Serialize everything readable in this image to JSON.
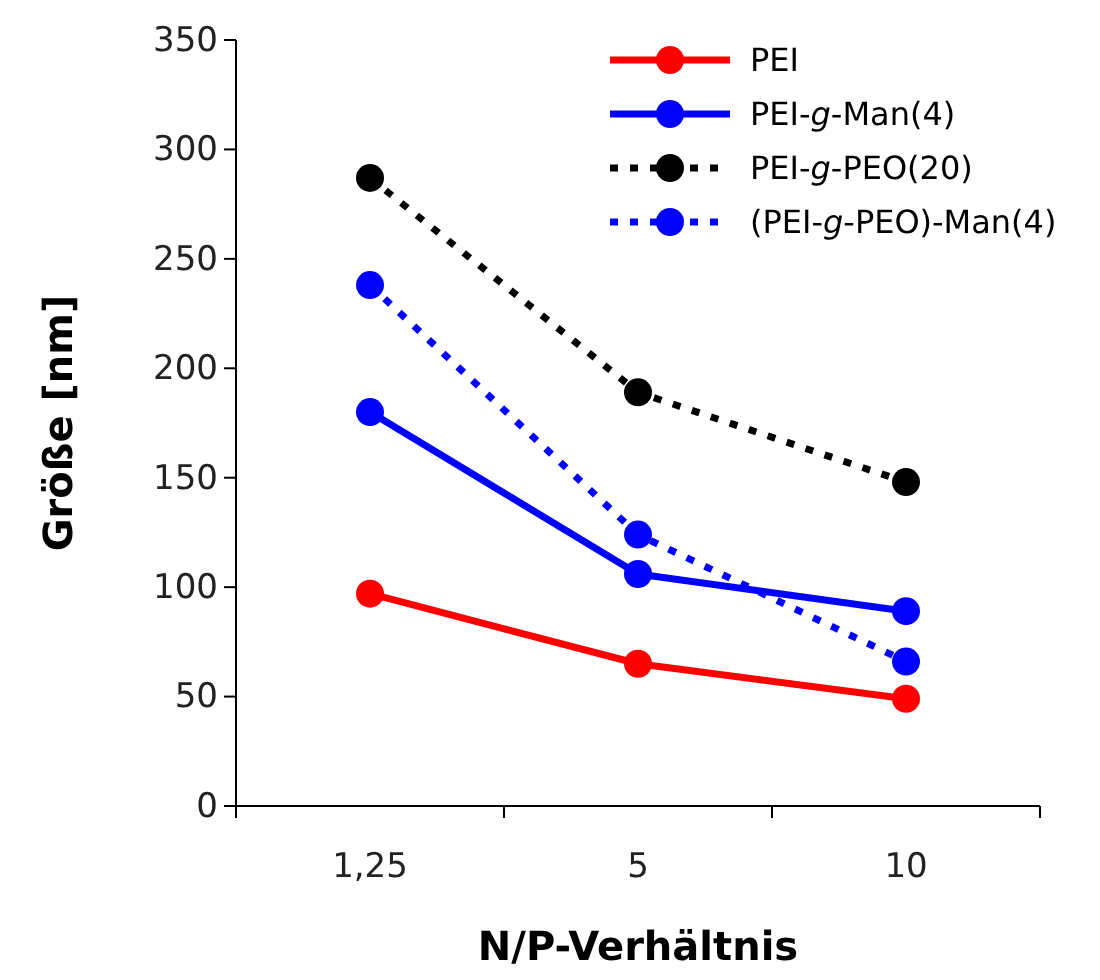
{
  "chart_data": {
    "type": "line",
    "xlabel": "N/P-Verhältnis",
    "ylabel": "Größe [nm]",
    "categories": [
      "1,25",
      "5",
      "10"
    ],
    "series": [
      {
        "name": "PEI",
        "color": "#ff0000",
        "values": [
          97,
          65,
          49
        ],
        "line_style": "solid"
      },
      {
        "name": "PEI-g-Man(4)",
        "color": "#0000ff",
        "values": [
          180,
          106,
          89
        ],
        "line_style": "solid"
      },
      {
        "name": "PEI-g-PEO(20)",
        "color": "#000000",
        "values": [
          287,
          189,
          148
        ],
        "line_style": "dotted"
      },
      {
        "name": "(PEI-g-PEO)-Man(4)",
        "color": "#0000ff",
        "values": [
          238,
          124,
          66
        ],
        "line_style": "dotted"
      }
    ],
    "ylim": [
      0,
      350
    ],
    "yticks": [
      0,
      50,
      100,
      150,
      200,
      250,
      300,
      350
    ],
    "legend": "top right",
    "marker": "circle",
    "grid": false
  }
}
